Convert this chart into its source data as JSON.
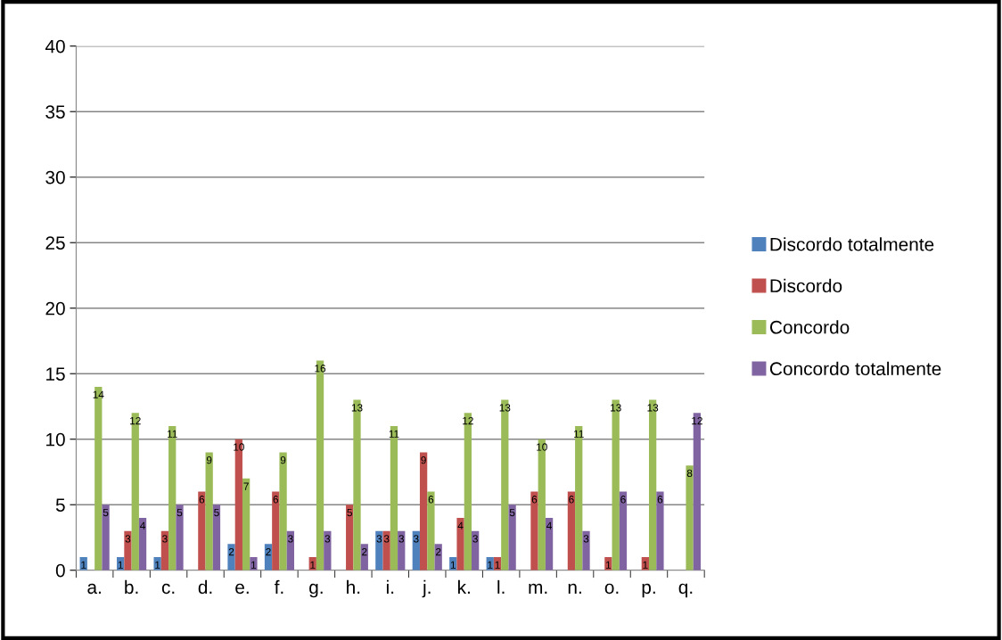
{
  "chart_data": {
    "type": "bar",
    "categories": [
      "a.",
      "b.",
      "c.",
      "d.",
      "e.",
      "f.",
      "g.",
      "h.",
      "i.",
      "j.",
      "k.",
      "l.",
      "m.",
      "n.",
      "o.",
      "p.",
      "q."
    ],
    "series": [
      {
        "name": "Discordo totalmente",
        "color": "#4f81bd",
        "values": [
          1,
          1,
          1,
          0,
          2,
          2,
          0,
          0,
          3,
          3,
          1,
          1,
          0,
          0,
          0,
          0,
          0
        ],
        "value_labels": [
          "1",
          "1",
          "1",
          null,
          "2",
          "2",
          null,
          null,
          "3",
          "3",
          "1",
          "1",
          null,
          null,
          null,
          null,
          null
        ]
      },
      {
        "name": "Discordo",
        "color": "#c0504d",
        "values": [
          0,
          3,
          3,
          6,
          10,
          6,
          1,
          5,
          3,
          9,
          4,
          1,
          6,
          6,
          1,
          1,
          0
        ],
        "value_labels": [
          null,
          "3",
          "3",
          "6",
          "10",
          "6",
          "1",
          "5",
          "3",
          "9",
          "4",
          "1",
          "6",
          "6",
          "1",
          "1",
          null
        ]
      },
      {
        "name": "Concordo",
        "color": "#9bbb59",
        "values": [
          14,
          12,
          11,
          9,
          7,
          9,
          16,
          13,
          11,
          6,
          12,
          13,
          10,
          11,
          13,
          13,
          8
        ],
        "value_labels": [
          "14",
          "12",
          "11",
          "9",
          "7",
          "9",
          "16",
          "13",
          "11",
          "6",
          "12",
          "13",
          "10",
          "11",
          "13",
          "13",
          "8"
        ]
      },
      {
        "name": "Concordo totalmente",
        "color": "#8064a2",
        "values": [
          5,
          4,
          5,
          5,
          1,
          3,
          3,
          2,
          3,
          2,
          3,
          5,
          4,
          3,
          6,
          6,
          12
        ],
        "value_labels": [
          "5",
          "4",
          "5",
          "5",
          "1",
          "3",
          "3",
          "2",
          "3",
          "2",
          "3",
          "5",
          "4",
          "3",
          "6",
          "6",
          "12"
        ]
      }
    ],
    "ylim": [
      0,
      40
    ],
    "yticks": [
      0,
      5,
      10,
      15,
      20,
      25,
      30,
      35,
      40
    ],
    "grid": "y",
    "legend": "right"
  }
}
